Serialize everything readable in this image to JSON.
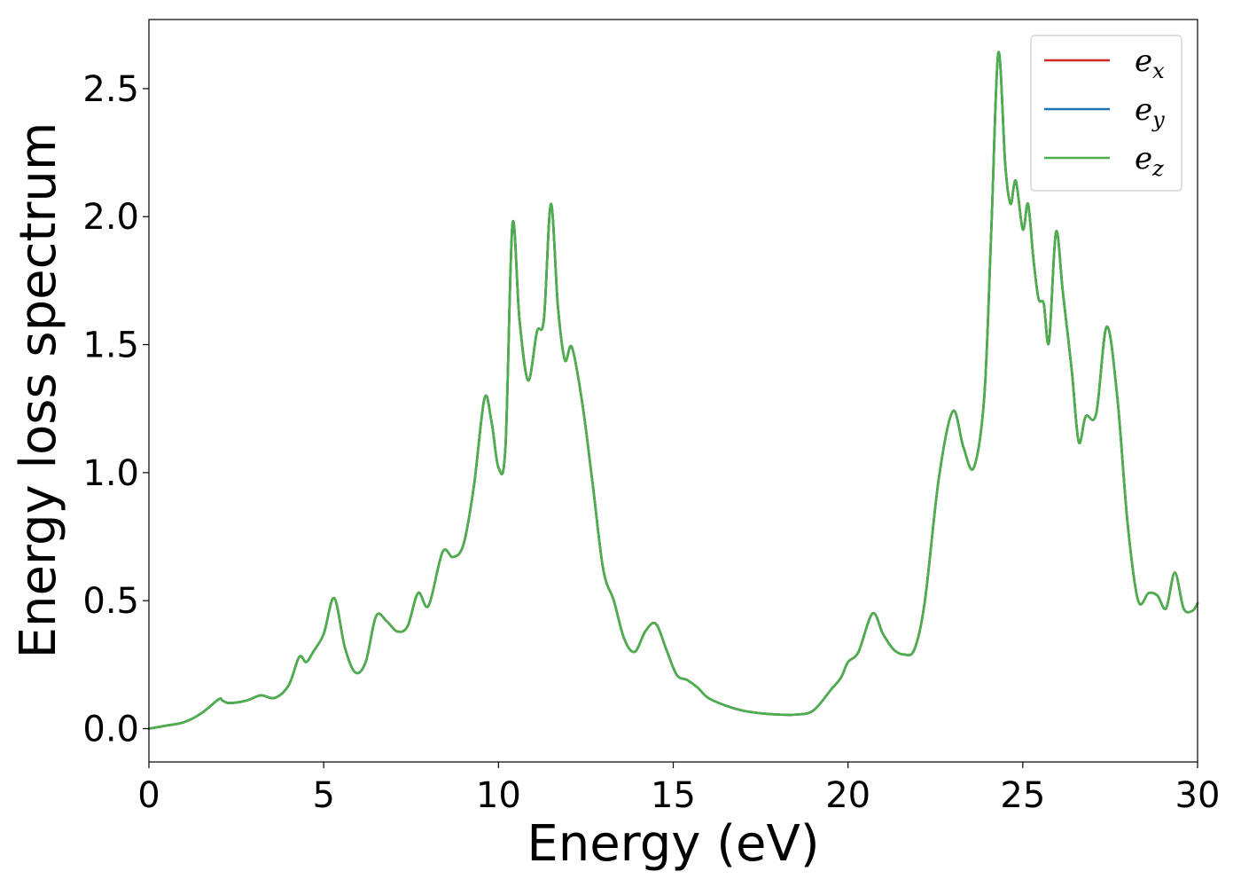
{
  "chart_data": {
    "type": "line",
    "xlabel": "Energy (eV)",
    "ylabel": "Energy loss spectrum",
    "xlim": [
      0,
      30
    ],
    "ylim": [
      -0.13,
      2.77
    ],
    "grid": false,
    "legend_position": "top-right",
    "x_ticks": [
      {
        "value": 0,
        "label": "0"
      },
      {
        "value": 5,
        "label": "5"
      },
      {
        "value": 10,
        "label": "10"
      },
      {
        "value": 15,
        "label": "15"
      },
      {
        "value": 20,
        "label": "20"
      },
      {
        "value": 25,
        "label": "25"
      },
      {
        "value": 30,
        "label": "30"
      }
    ],
    "y_ticks": [
      {
        "value": 0.0,
        "label": "0.0"
      },
      {
        "value": 0.5,
        "label": "0.5"
      },
      {
        "value": 1.0,
        "label": "1.0"
      },
      {
        "value": 1.5,
        "label": "1.5"
      },
      {
        "value": 2.0,
        "label": "2.0"
      },
      {
        "value": 2.5,
        "label": "2.5"
      }
    ],
    "x": [
      0,
      0.5,
      1.0,
      1.5,
      2.0,
      2.1,
      2.3,
      2.8,
      3.2,
      3.6,
      4.0,
      4.3,
      4.5,
      4.7,
      5.0,
      5.3,
      5.6,
      5.9,
      6.2,
      6.5,
      6.8,
      7.1,
      7.4,
      7.7,
      8.0,
      8.4,
      8.7,
      9.0,
      9.3,
      9.6,
      9.8,
      10.0,
      10.2,
      10.4,
      10.6,
      10.85,
      11.1,
      11.3,
      11.5,
      11.7,
      11.9,
      12.1,
      12.4,
      12.7,
      13.0,
      13.3,
      13.6,
      13.9,
      14.2,
      14.5,
      14.8,
      15.1,
      15.4,
      15.7,
      16.0,
      16.5,
      17.0,
      17.5,
      18.0,
      18.5,
      19.0,
      19.5,
      19.8,
      20.0,
      20.3,
      20.7,
      21.0,
      21.3,
      21.6,
      21.9,
      22.2,
      22.6,
      23.0,
      23.3,
      23.6,
      23.9,
      24.1,
      24.3,
      24.5,
      24.65,
      24.8,
      25.0,
      25.15,
      25.3,
      25.45,
      25.6,
      25.75,
      25.95,
      26.15,
      26.4,
      26.6,
      26.8,
      27.1,
      27.4,
      27.7,
      28.0,
      28.3,
      28.6,
      28.85,
      29.1,
      29.35,
      29.6,
      29.85,
      30.0
    ],
    "series": [
      {
        "name": "e_x",
        "label": "e",
        "subscript": "x",
        "color": "#d62728",
        "values": [
          0.0,
          0.012,
          0.025,
          0.06,
          0.115,
          0.11,
          0.1,
          0.11,
          0.13,
          0.12,
          0.17,
          0.28,
          0.26,
          0.3,
          0.37,
          0.51,
          0.32,
          0.22,
          0.26,
          0.44,
          0.42,
          0.38,
          0.4,
          0.53,
          0.48,
          0.69,
          0.67,
          0.72,
          0.95,
          1.29,
          1.2,
          1.02,
          1.1,
          1.97,
          1.6,
          1.36,
          1.55,
          1.6,
          2.05,
          1.65,
          1.44,
          1.49,
          1.27,
          0.95,
          0.62,
          0.5,
          0.35,
          0.3,
          0.38,
          0.41,
          0.31,
          0.21,
          0.19,
          0.16,
          0.12,
          0.09,
          0.07,
          0.06,
          0.055,
          0.055,
          0.07,
          0.15,
          0.2,
          0.26,
          0.3,
          0.45,
          0.37,
          0.31,
          0.29,
          0.31,
          0.5,
          0.98,
          1.24,
          1.1,
          1.02,
          1.3,
          1.95,
          2.64,
          2.2,
          2.05,
          2.14,
          1.95,
          2.05,
          1.84,
          1.68,
          1.66,
          1.51,
          1.94,
          1.7,
          1.4,
          1.12,
          1.22,
          1.23,
          1.57,
          1.3,
          0.8,
          0.5,
          0.53,
          0.52,
          0.47,
          0.61,
          0.47,
          0.46,
          0.49
        ]
      },
      {
        "name": "e_y",
        "label": "e",
        "subscript": "y",
        "color": "#1f77b4",
        "values": [
          0.0,
          0.012,
          0.025,
          0.06,
          0.115,
          0.11,
          0.1,
          0.11,
          0.13,
          0.12,
          0.17,
          0.28,
          0.26,
          0.3,
          0.37,
          0.51,
          0.32,
          0.22,
          0.26,
          0.44,
          0.42,
          0.38,
          0.4,
          0.53,
          0.48,
          0.69,
          0.67,
          0.72,
          0.95,
          1.29,
          1.2,
          1.02,
          1.1,
          1.97,
          1.6,
          1.36,
          1.55,
          1.6,
          2.05,
          1.65,
          1.44,
          1.49,
          1.27,
          0.95,
          0.62,
          0.5,
          0.35,
          0.3,
          0.38,
          0.41,
          0.31,
          0.21,
          0.19,
          0.16,
          0.12,
          0.09,
          0.07,
          0.06,
          0.055,
          0.055,
          0.07,
          0.15,
          0.2,
          0.26,
          0.3,
          0.45,
          0.37,
          0.31,
          0.29,
          0.31,
          0.5,
          0.98,
          1.24,
          1.1,
          1.02,
          1.3,
          1.95,
          2.64,
          2.2,
          2.05,
          2.14,
          1.95,
          2.05,
          1.84,
          1.68,
          1.66,
          1.51,
          1.94,
          1.7,
          1.4,
          1.12,
          1.22,
          1.23,
          1.57,
          1.3,
          0.8,
          0.5,
          0.53,
          0.52,
          0.47,
          0.61,
          0.47,
          0.46,
          0.49
        ]
      },
      {
        "name": "e_z",
        "label": "e",
        "subscript": "z",
        "color": "#4daf4a",
        "values": [
          0.0,
          0.012,
          0.025,
          0.06,
          0.115,
          0.11,
          0.1,
          0.11,
          0.13,
          0.12,
          0.17,
          0.28,
          0.26,
          0.3,
          0.37,
          0.51,
          0.32,
          0.22,
          0.26,
          0.44,
          0.42,
          0.38,
          0.4,
          0.53,
          0.48,
          0.69,
          0.67,
          0.72,
          0.95,
          1.29,
          1.2,
          1.02,
          1.1,
          1.97,
          1.6,
          1.36,
          1.55,
          1.6,
          2.05,
          1.65,
          1.44,
          1.49,
          1.27,
          0.95,
          0.62,
          0.5,
          0.35,
          0.3,
          0.38,
          0.41,
          0.31,
          0.21,
          0.19,
          0.16,
          0.12,
          0.09,
          0.07,
          0.06,
          0.055,
          0.055,
          0.07,
          0.15,
          0.2,
          0.26,
          0.3,
          0.45,
          0.37,
          0.31,
          0.29,
          0.31,
          0.5,
          0.98,
          1.24,
          1.1,
          1.02,
          1.3,
          1.95,
          2.64,
          2.2,
          2.05,
          2.14,
          1.95,
          2.05,
          1.84,
          1.68,
          1.66,
          1.51,
          1.94,
          1.7,
          1.4,
          1.12,
          1.22,
          1.23,
          1.57,
          1.3,
          0.8,
          0.5,
          0.53,
          0.52,
          0.47,
          0.61,
          0.47,
          0.46,
          0.49
        ]
      }
    ]
  }
}
